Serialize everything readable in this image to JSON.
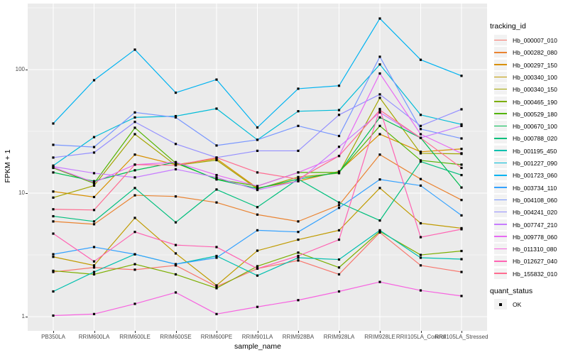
{
  "figure": {
    "ylabel": "FPKM + 1",
    "xlabel": "sample_name",
    "legend": {
      "tracking_title": "tracking_id",
      "quant_title": "quant_status",
      "quant_ok_label": "OK"
    }
  },
  "chart_data": {
    "type": "line",
    "title": "",
    "xlabel": "sample_name",
    "ylabel": "FPKM + 1",
    "x_categories": [
      "PB350LA",
      "RRIM600LA",
      "RRIM600LE",
      "RRIM600SE",
      "RRIM600PE",
      "RRIM901LA",
      "RRIM928BA",
      "RRIM928LA",
      "RRIM928LE",
      "RRII105LA_Control",
      "RRII105LA_Stressed"
    ],
    "y_axis": {
      "scale": "log10",
      "ticks": [
        1,
        10,
        100
      ],
      "approx_range": [
        0.88,
        340
      ]
    },
    "grid": true,
    "panel_bg": "#EBEBEB",
    "grid_color": "#FFFFFF",
    "marker": {
      "shape": "square",
      "color": "#000000",
      "size": 3.2
    },
    "legend_position": "right",
    "series": [
      {
        "name": "Hb_000007_010",
        "color": "#F8766D",
        "values": [
          2.3,
          2.5,
          2.4,
          2.6,
          1.75,
          2.45,
          2.85,
          2.2,
          4.8,
          2.6,
          2.3
        ]
      },
      {
        "name": "Hb_000282_080",
        "color": "#EA8331",
        "values": [
          5.9,
          5.6,
          9.6,
          9.4,
          8.4,
          6.7,
          5.9,
          8.0,
          20.5,
          13.0,
          8.8
        ]
      },
      {
        "name": "Hb_000297_150",
        "color": "#D89000",
        "values": [
          10.3,
          9.3,
          20.5,
          17.0,
          19.0,
          11.0,
          12.5,
          15.0,
          30.0,
          21.6,
          22.8
        ]
      },
      {
        "name": "Hb_000340_100",
        "color": "#C09B00",
        "values": [
          3.05,
          2.6,
          6.3,
          3.25,
          1.79,
          3.42,
          4.2,
          5.0,
          11.0,
          5.7,
          5.2
        ]
      },
      {
        "name": "Hb_000340_150",
        "color": "#A3A500",
        "values": [
          9.2,
          11.5,
          30.0,
          16.8,
          18.5,
          10.8,
          13.5,
          14.5,
          59.0,
          21.0,
          20.8
        ]
      },
      {
        "name": "Hb_000465_190",
        "color": "#7CAE00",
        "values": [
          2.35,
          2.2,
          2.66,
          2.2,
          1.7,
          2.56,
          3.3,
          2.5,
          4.9,
          3.16,
          3.4
        ]
      },
      {
        "name": "Hb_000529_180",
        "color": "#53B400",
        "values": [
          16.0,
          12.0,
          33.8,
          17.5,
          13.0,
          11.4,
          14.7,
          14.7,
          35.0,
          18.4,
          17.0
        ]
      },
      {
        "name": "Hb_000670_100",
        "color": "#00BC51",
        "values": [
          14.7,
          12.5,
          15.3,
          17.8,
          12.9,
          10.9,
          13.0,
          14.7,
          41.0,
          28.0,
          11.1
        ]
      },
      {
        "name": "Hb_000788_020",
        "color": "#00BF7D",
        "values": [
          6.5,
          5.9,
          11.0,
          5.8,
          10.7,
          7.7,
          13.0,
          8.4,
          6.0,
          18.0,
          14.0
        ]
      },
      {
        "name": "Hb_001195_450",
        "color": "#00C0AF",
        "values": [
          1.6,
          2.3,
          3.2,
          2.66,
          3.1,
          2.15,
          3.0,
          2.9,
          5.0,
          3.0,
          2.92
        ]
      },
      {
        "name": "Hb_001227_090",
        "color": "#00BCD8",
        "values": [
          16.7,
          28.4,
          41.0,
          42.0,
          48.3,
          27.0,
          46.0,
          47.0,
          110.0,
          43.0,
          36.0
        ]
      },
      {
        "name": "Hb_001723_060",
        "color": "#00B3F1",
        "values": [
          36.6,
          82.0,
          145.0,
          65.0,
          83.0,
          34.0,
          70.0,
          74.0,
          259.0,
          120.0,
          89.0
        ]
      },
      {
        "name": "Hb_003734_110",
        "color": "#35A2FF",
        "values": [
          3.2,
          3.66,
          3.2,
          2.66,
          3.0,
          5.0,
          4.85,
          7.6,
          12.9,
          11.5,
          6.6
        ]
      },
      {
        "name": "Hb_004108_060",
        "color": "#7997FF",
        "values": [
          24.6,
          23.6,
          45.0,
          41.0,
          24.3,
          27.0,
          35.0,
          29.0,
          127.0,
          33.0,
          27.7
        ]
      },
      {
        "name": "Hb_004241_020",
        "color": "#9590FF",
        "values": [
          19.4,
          21.3,
          37.7,
          25.0,
          19.4,
          22.0,
          22.0,
          43.0,
          63.0,
          35.0,
          47.7
        ]
      },
      {
        "name": "Hb_007747_210",
        "color": "#C77CFF",
        "values": [
          16.4,
          14.5,
          13.4,
          15.6,
          13.4,
          10.6,
          12.5,
          23.7,
          45.0,
          28.0,
          35.0
        ]
      },
      {
        "name": "Hb_009778_060",
        "color": "#E76BF3",
        "values": [
          16.2,
          12.2,
          17.0,
          17.8,
          14.0,
          11.4,
          14.7,
          20.0,
          93.0,
          30.0,
          21.0
        ]
      },
      {
        "name": "Hb_011310_080",
        "color": "#F763E0",
        "values": [
          1.02,
          1.05,
          1.27,
          1.57,
          1.05,
          1.2,
          1.36,
          1.6,
          1.91,
          1.63,
          1.47
        ]
      },
      {
        "name": "Hb_012627_040",
        "color": "#FF64B3",
        "values": [
          4.7,
          2.8,
          4.85,
          3.8,
          3.66,
          2.45,
          3.1,
          4.2,
          48.0,
          4.4,
          5.1
        ]
      },
      {
        "name": "Hb_155832_010",
        "color": "#FF6C91",
        "values": [
          7.4,
          7.3,
          17.0,
          16.8,
          19.4,
          14.7,
          13.0,
          20.0,
          47.0,
          28.0,
          16.0
        ]
      }
    ],
    "quant_status_values": [
      "OK"
    ]
  }
}
